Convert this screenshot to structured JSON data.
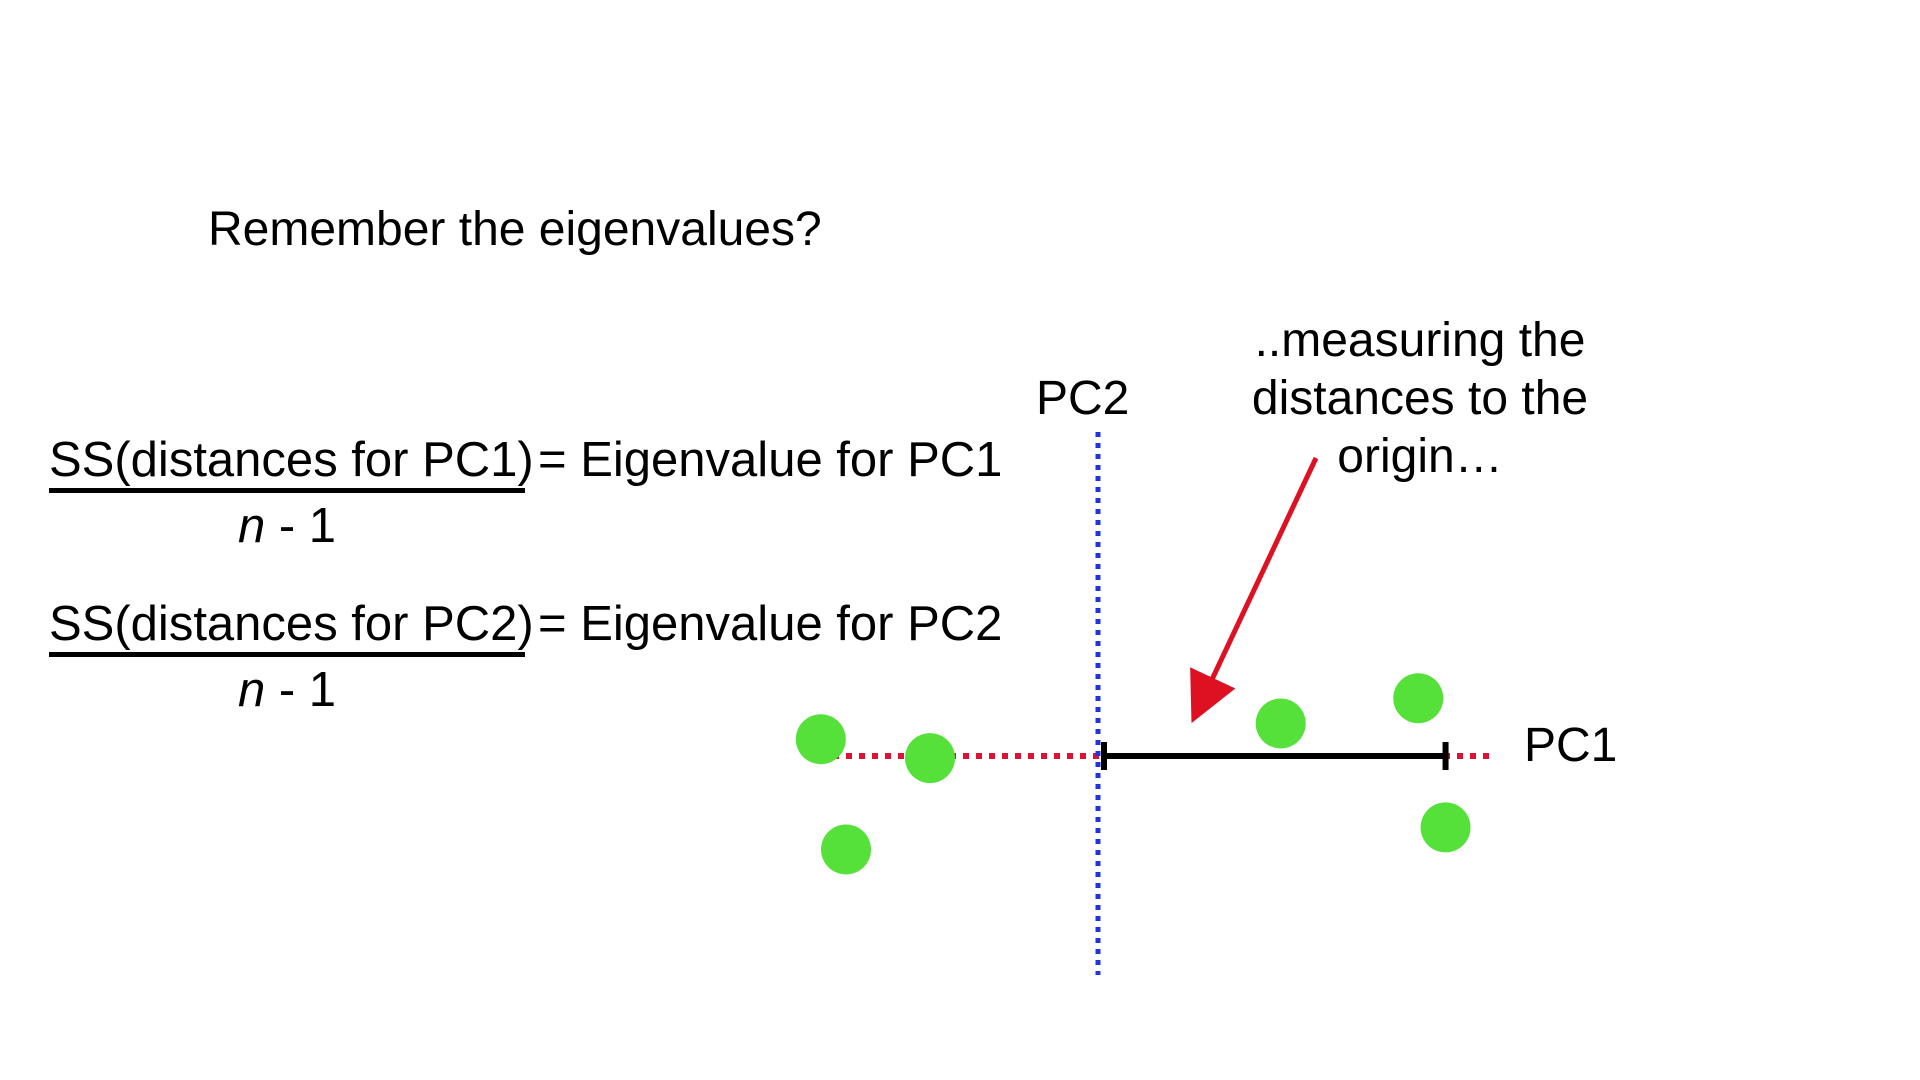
{
  "heading": "Remember the eigenvalues?",
  "equations": [
    {
      "numerator": "SS(distances for PC1)",
      "rhs": "= Eigenvalue for PC1",
      "denominator_var": "n",
      "denominator_rest": " - 1"
    },
    {
      "numerator": "SS(distances for PC2)",
      "rhs": "= Eigenvalue for PC2",
      "denominator_var": "n",
      "denominator_rest": " - 1"
    }
  ],
  "annotation": {
    "lines": [
      "..measuring the",
      "distances to the",
      "origin…"
    ]
  },
  "axes": {
    "pc1_label": "PC1",
    "pc2_label": "PC2"
  },
  "data_points": [
    {
      "pc1": -2.64,
      "pc2": 0.16
    },
    {
      "pc1": -1.6,
      "pc2": -0.02
    },
    {
      "pc1": -2.4,
      "pc2": -0.89
    },
    {
      "pc1": 1.74,
      "pc2": 0.31
    },
    {
      "pc1": 3.05,
      "pc2": 0.55
    },
    {
      "pc1": 3.31,
      "pc2": -0.68
    }
  ],
  "measured_point_pc1": 3.31,
  "colors": {
    "points": "#55e03a",
    "pc1_axis": "#dd1133",
    "pc2_axis": "#2233dd",
    "arrow": "#dd1122",
    "measure_bar": "#000000",
    "text": "#000000"
  }
}
